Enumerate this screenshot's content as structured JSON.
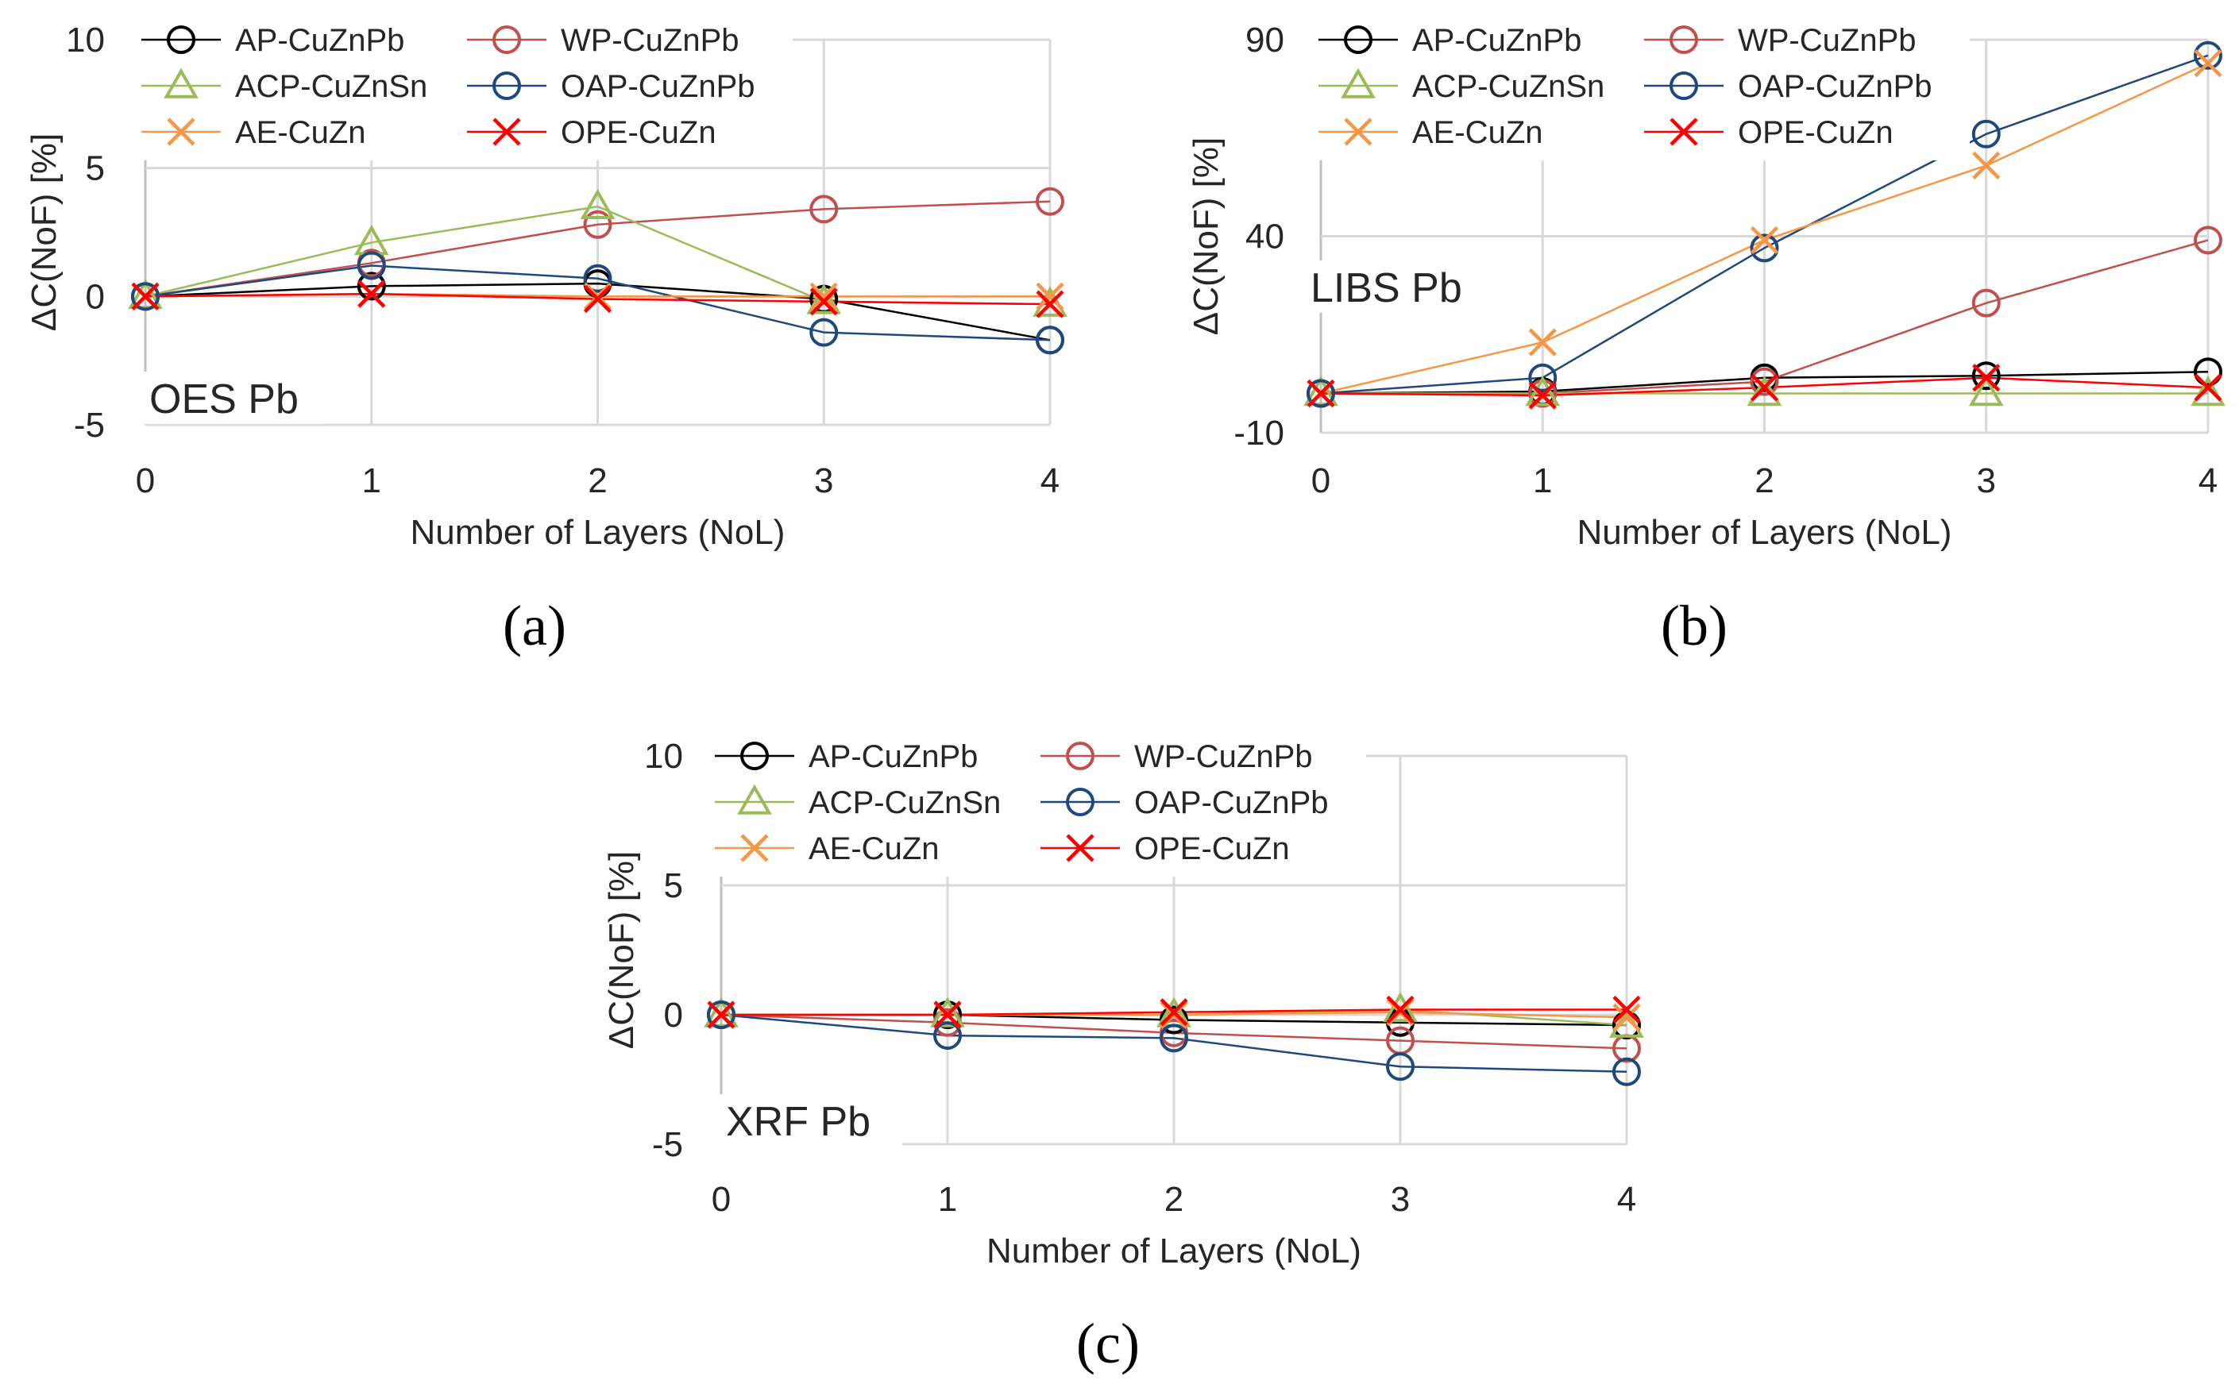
{
  "series_styles": {
    "AP-CuZnPb": {
      "color": "#000000",
      "marker": "circle"
    },
    "WP-CuZnPb": {
      "color": "#c0504d",
      "marker": "circle"
    },
    "ACP-CuZnSn": {
      "color": "#9bbb59",
      "marker": "triangle"
    },
    "OAP-CuZnPb": {
      "color": "#1f497d",
      "marker": "circle"
    },
    "AE-CuZn": {
      "color": "#f79646",
      "marker": "x"
    },
    "OPE-CuZn": {
      "color": "#ff0000",
      "marker": "x"
    }
  },
  "chart_data": [
    {
      "id": "a",
      "type": "line",
      "panel_label": "(a)",
      "annotation": "OES Pb",
      "xlabel": "Number of Layers (NoL)",
      "ylabel": "ΔC(NoF) [%]",
      "x": [
        0,
        1,
        2,
        3,
        4
      ],
      "xticks": [
        "0",
        "1",
        "2",
        "3",
        "4"
      ],
      "ylim": [
        -5,
        10
      ],
      "yticks": [
        "-5",
        "0",
        "5",
        "10"
      ],
      "yticks_values": [
        -5,
        0,
        5,
        10
      ],
      "legend": [
        "AP-CuZnPb",
        "WP-CuZnPb",
        "ACP-CuZnSn",
        "OAP-CuZnPb",
        "AE-CuZn",
        "OPE-CuZn"
      ],
      "series": [
        {
          "name": "AP-CuZnPb",
          "values": [
            0,
            0.4,
            0.5,
            -0.1,
            -1.7
          ]
        },
        {
          "name": "WP-CuZnPb",
          "values": [
            0,
            1.3,
            2.8,
            3.4,
            3.7
          ]
        },
        {
          "name": "ACP-CuZnSn",
          "values": [
            0,
            2.1,
            3.5,
            -0.2,
            -0.3
          ]
        },
        {
          "name": "OAP-CuZnPb",
          "values": [
            0,
            1.2,
            0.7,
            -1.4,
            -1.7
          ]
        },
        {
          "name": "AE-CuZn",
          "values": [
            0,
            0.1,
            0.0,
            0.0,
            0.0
          ]
        },
        {
          "name": "OPE-CuZn",
          "values": [
            0,
            0.1,
            -0.1,
            -0.2,
            -0.3
          ]
        }
      ]
    },
    {
      "id": "b",
      "type": "line",
      "panel_label": "(b)",
      "annotation": "LIBS Pb",
      "xlabel": "Number of Layers (NoL)",
      "ylabel": "ΔC(NoF) [%]",
      "x": [
        0,
        1,
        2,
        3,
        4
      ],
      "xticks": [
        "0",
        "1",
        "2",
        "3",
        "4"
      ],
      "ylim": [
        -10,
        90
      ],
      "yticks": [
        "-10",
        "40",
        "90"
      ],
      "yticks_values": [
        -10,
        40,
        90
      ],
      "legend": [
        "AP-CuZnPb",
        "WP-CuZnPb",
        "ACP-CuZnSn",
        "OAP-CuZnPb",
        "AE-CuZn",
        "OPE-CuZn"
      ],
      "series": [
        {
          "name": "AP-CuZnPb",
          "values": [
            0,
            0.5,
            4,
            4.5,
            5.5
          ]
        },
        {
          "name": "WP-CuZnPb",
          "values": [
            0,
            0,
            3,
            23,
            39
          ]
        },
        {
          "name": "ACP-CuZnSn",
          "values": [
            0,
            0,
            0,
            0,
            0
          ]
        },
        {
          "name": "OAP-CuZnPb",
          "values": [
            0,
            4,
            37,
            66,
            86
          ]
        },
        {
          "name": "AE-CuZn",
          "values": [
            0,
            13,
            39,
            58,
            84
          ]
        },
        {
          "name": "OPE-CuZn",
          "values": [
            0,
            -0.5,
            1.5,
            4,
            1.5
          ]
        }
      ]
    },
    {
      "id": "c",
      "type": "line",
      "panel_label": "(c)",
      "annotation": "XRF Pb",
      "xlabel": "Number of Layers (NoL)",
      "ylabel": "ΔC(NoF) [%]",
      "x": [
        0,
        1,
        2,
        3,
        4
      ],
      "xticks": [
        "0",
        "1",
        "2",
        "3",
        "4"
      ],
      "ylim": [
        -5,
        10
      ],
      "yticks": [
        "-5",
        "0",
        "5",
        "10"
      ],
      "yticks_values": [
        -5,
        0,
        5,
        10
      ],
      "legend": [
        "AP-CuZnPb",
        "WP-CuZnPb",
        "ACP-CuZnSn",
        "OAP-CuZnPb",
        "AE-CuZn",
        "OPE-CuZn"
      ],
      "series": [
        {
          "name": "AP-CuZnPb",
          "values": [
            0,
            0.0,
            -0.2,
            -0.3,
            -0.4
          ]
        },
        {
          "name": "WP-CuZnPb",
          "values": [
            0,
            -0.3,
            -0.7,
            -1.0,
            -1.3
          ]
        },
        {
          "name": "ACP-CuZnSn",
          "values": [
            0,
            0.0,
            0.0,
            0.2,
            -0.4
          ]
        },
        {
          "name": "OAP-CuZnPb",
          "values": [
            0,
            -0.8,
            -0.9,
            -2.0,
            -2.2
          ]
        },
        {
          "name": "AE-CuZn",
          "values": [
            0,
            0.0,
            0.0,
            0.1,
            -0.1
          ]
        },
        {
          "name": "OPE-CuZn",
          "values": [
            0,
            0.0,
            0.1,
            0.2,
            0.2
          ]
        }
      ]
    }
  ]
}
